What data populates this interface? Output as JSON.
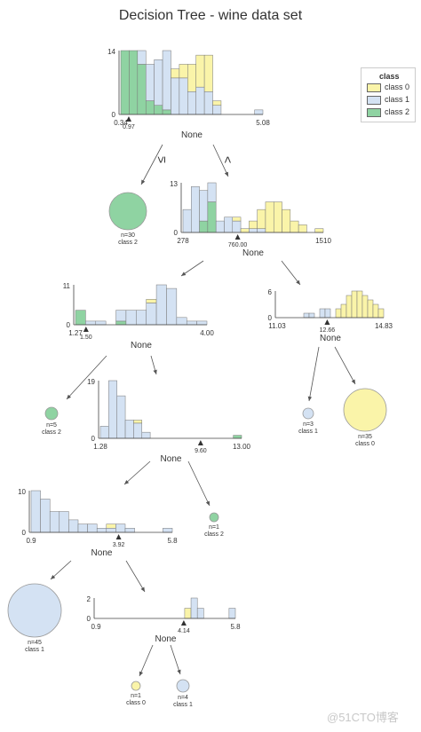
{
  "title": "Decision Tree - wine data set",
  "watermark": "@51CTO博客",
  "legend": {
    "title": "class",
    "items": [
      {
        "label": "class 0",
        "color": "#faf4a9"
      },
      {
        "label": "class 1",
        "color": "#d4e2f3"
      },
      {
        "label": "class 2",
        "color": "#8fd3a2"
      }
    ]
  },
  "colors": {
    "class0": "#faf4a9",
    "class1": "#d4e2f3",
    "class2": "#8fd3a2",
    "edge": "#555555"
  },
  "edge_labels": {
    "left": "≤",
    "right": ">"
  },
  "nodes": {
    "root": {
      "label": "None",
      "ymax": "14",
      "ymin": "0",
      "x_min": "0.34",
      "x_max": "5.08",
      "split": "0.97",
      "bins": [
        [
          0,
          0,
          14
        ],
        [
          0,
          0,
          14
        ],
        [
          0,
          3,
          11
        ],
        [
          0,
          8,
          3
        ],
        [
          0,
          10,
          2
        ],
        [
          0,
          13,
          1
        ],
        [
          2,
          8,
          0
        ],
        [
          3,
          8,
          0
        ],
        [
          6,
          5,
          0
        ],
        [
          7,
          6,
          0
        ],
        [
          8,
          5,
          0
        ],
        [
          1,
          2,
          0
        ],
        [
          0,
          0,
          0
        ],
        [
          0,
          0,
          0
        ],
        [
          0,
          0,
          0
        ],
        [
          0,
          0,
          0
        ],
        [
          0,
          1,
          0
        ]
      ]
    },
    "leaf_class2_30": {
      "n": "n=30",
      "cls": "class 2"
    },
    "node_l1r": {
      "label": "None",
      "ymax": "13",
      "ymin": "0",
      "x_min": "278",
      "x_max": "1510",
      "split": "760.00",
      "bins": [
        [
          0,
          6,
          0
        ],
        [
          0,
          12,
          0
        ],
        [
          0,
          8,
          3
        ],
        [
          0,
          5,
          8
        ],
        [
          0,
          3,
          0
        ],
        [
          0,
          4,
          0
        ],
        [
          1,
          3,
          0
        ],
        [
          1,
          0,
          0
        ],
        [
          2,
          1,
          0
        ],
        [
          5,
          1,
          0
        ],
        [
          8,
          0,
          0
        ],
        [
          8,
          0,
          0
        ],
        [
          6,
          0,
          0
        ],
        [
          3,
          0,
          0
        ],
        [
          2,
          0,
          0
        ],
        [
          0,
          0,
          0
        ],
        [
          1,
          0,
          0
        ]
      ]
    },
    "node_l2l": {
      "label": "None",
      "ymax": "11",
      "ymin": "0",
      "x_min": "1.27",
      "x_max": "4.00",
      "split": "1.50",
      "bins": [
        [
          0,
          0,
          4
        ],
        [
          0,
          1,
          0
        ],
        [
          0,
          1,
          0
        ],
        [
          0,
          0,
          0
        ],
        [
          0,
          3,
          1
        ],
        [
          0,
          4,
          0
        ],
        [
          0,
          4,
          0
        ],
        [
          1,
          6,
          0
        ],
        [
          0,
          11,
          0
        ],
        [
          0,
          10,
          0
        ],
        [
          0,
          2,
          0
        ],
        [
          0,
          1,
          0
        ],
        [
          0,
          1,
          0
        ]
      ]
    },
    "node_l2r": {
      "label": "None",
      "ymax": "6",
      "ymin": "0",
      "x_min": "11.03",
      "x_max": "14.83",
      "split": "12.66",
      "bins": [
        [
          0,
          0,
          0
        ],
        [
          0,
          0,
          0
        ],
        [
          0,
          0,
          0
        ],
        [
          0,
          0,
          0
        ],
        [
          0,
          0,
          0
        ],
        [
          0,
          1,
          0
        ],
        [
          0,
          1,
          0
        ],
        [
          0,
          0,
          0
        ],
        [
          0,
          2,
          0
        ],
        [
          0,
          2,
          0
        ],
        [
          0,
          0,
          0
        ],
        [
          2,
          0,
          0
        ],
        [
          3,
          0,
          0
        ],
        [
          5,
          0,
          0
        ],
        [
          6,
          0,
          0
        ],
        [
          6,
          0,
          0
        ],
        [
          5,
          0,
          0
        ],
        [
          4,
          0,
          0
        ],
        [
          3,
          0,
          0
        ],
        [
          2,
          0,
          0
        ]
      ]
    },
    "leaf_class2_5": {
      "n": "n=5",
      "cls": "class 2"
    },
    "node_l3": {
      "label": "None",
      "ymax": "19",
      "ymin": "0",
      "x_min": "1.28",
      "x_max": "13.00",
      "split": "9.60",
      "bins": [
        [
          0,
          4,
          0
        ],
        [
          0,
          19,
          0
        ],
        [
          0,
          14,
          0
        ],
        [
          0,
          6,
          0
        ],
        [
          1,
          5,
          0
        ],
        [
          0,
          2,
          0
        ],
        [
          0,
          0,
          0
        ],
        [
          0,
          0,
          0
        ],
        [
          0,
          0,
          0
        ],
        [
          0,
          0,
          0
        ],
        [
          0,
          0,
          0
        ],
        [
          0,
          0,
          0
        ],
        [
          0,
          0,
          0
        ],
        [
          0,
          0,
          0
        ],
        [
          0,
          0,
          0
        ],
        [
          0,
          0,
          0
        ],
        [
          0,
          0,
          1
        ]
      ]
    },
    "leaf_class1_3": {
      "n": "n=3",
      "cls": "class 1"
    },
    "leaf_class0_35": {
      "n": "n=35",
      "cls": "class 0"
    },
    "node_l4": {
      "label": "None",
      "ymax": "10",
      "ymin": "0",
      "x_min": "0.9",
      "x_max": "5.8",
      "split": "3.92",
      "bins": [
        [
          0,
          10,
          0
        ],
        [
          0,
          8,
          0
        ],
        [
          0,
          5,
          0
        ],
        [
          0,
          5,
          0
        ],
        [
          0,
          3,
          0
        ],
        [
          0,
          2,
          0
        ],
        [
          0,
          2,
          0
        ],
        [
          0,
          1,
          0
        ],
        [
          1,
          1,
          0
        ],
        [
          0,
          2,
          0
        ],
        [
          0,
          1,
          0
        ],
        [
          0,
          0,
          0
        ],
        [
          0,
          0,
          0
        ],
        [
          0,
          0,
          0
        ],
        [
          0,
          1,
          0
        ]
      ]
    },
    "leaf_class2_1": {
      "n": "n=1",
      "cls": "class 2"
    },
    "leaf_class1_45": {
      "n": "n=45",
      "cls": "class 1"
    },
    "node_l5": {
      "label": "None",
      "ymax": "2",
      "ymin": "0",
      "x_min": "0.9",
      "x_max": "5.8",
      "split": "4.14",
      "bins": [
        [
          0,
          0,
          0
        ],
        [
          0,
          0,
          0
        ],
        [
          0,
          0,
          0
        ],
        [
          0,
          0,
          0
        ],
        [
          0,
          0,
          0
        ],
        [
          0,
          0,
          0
        ],
        [
          0,
          0,
          0
        ],
        [
          0,
          0,
          0
        ],
        [
          0,
          0,
          0
        ],
        [
          0,
          0,
          0
        ],
        [
          0,
          0,
          0
        ],
        [
          0,
          0,
          0
        ],
        [
          0,
          0,
          0
        ],
        [
          0,
          0,
          0
        ],
        [
          1,
          0,
          0
        ],
        [
          0,
          2,
          0
        ],
        [
          0,
          1,
          0
        ],
        [
          0,
          0,
          0
        ],
        [
          0,
          0,
          0
        ],
        [
          0,
          0,
          0
        ],
        [
          0,
          0,
          0
        ],
        [
          0,
          1,
          0
        ]
      ]
    },
    "leaf_class0_1": {
      "n": "n=1",
      "cls": "class 0"
    },
    "leaf_class1_4": {
      "n": "n=4",
      "cls": "class 1"
    }
  }
}
